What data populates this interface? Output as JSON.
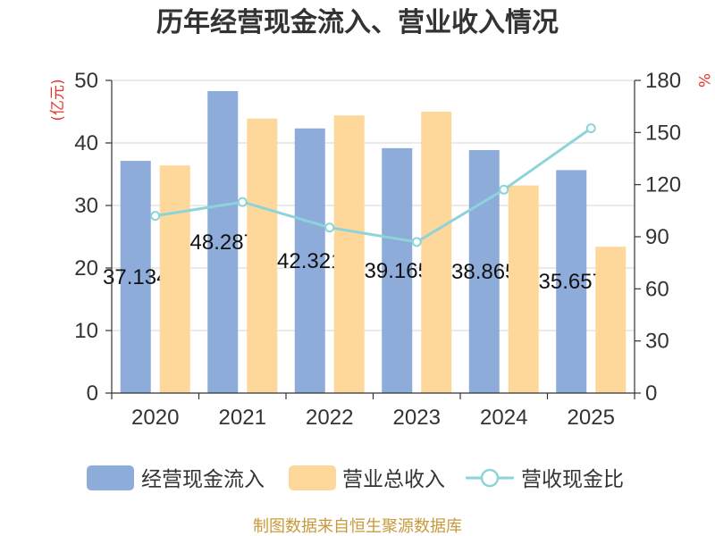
{
  "chart_data": {
    "type": "bar",
    "title": "历年经营现金流入、营业收入情况",
    "categories": [
      "2020",
      "2021",
      "2022",
      "2023",
      "2024",
      "2025"
    ],
    "y_left": {
      "label": "(亿元)",
      "range": [
        0,
        50
      ],
      "ticks": [
        0,
        10,
        20,
        30,
        40,
        50
      ]
    },
    "y_right": {
      "label": "%",
      "range": [
        0,
        180
      ],
      "ticks": [
        0,
        30,
        60,
        90,
        120,
        150,
        180
      ]
    },
    "axis_label_color": "#e5382d",
    "series": [
      {
        "name": "经营现金流入",
        "type": "bar",
        "axis": "left",
        "color": "#8eacda",
        "data_labels": true,
        "values": [
          37.134,
          48.287,
          42.321,
          39.165,
          38.865,
          35.657
        ]
      },
      {
        "name": "营业总收入",
        "type": "bar",
        "axis": "left",
        "color": "#fed89b",
        "values": [
          36.4,
          43.9,
          44.4,
          45.0,
          33.2,
          23.4
        ]
      },
      {
        "name": "营收现金比",
        "type": "line",
        "axis": "right",
        "color": "#8dd3da",
        "values": [
          102.0,
          110.0,
          95.3,
          87.0,
          117.1,
          152.4
        ]
      }
    ],
    "grid": true,
    "legend": "bottom"
  },
  "footer": {
    "source": "制图数据来自恒生聚源数据库"
  }
}
